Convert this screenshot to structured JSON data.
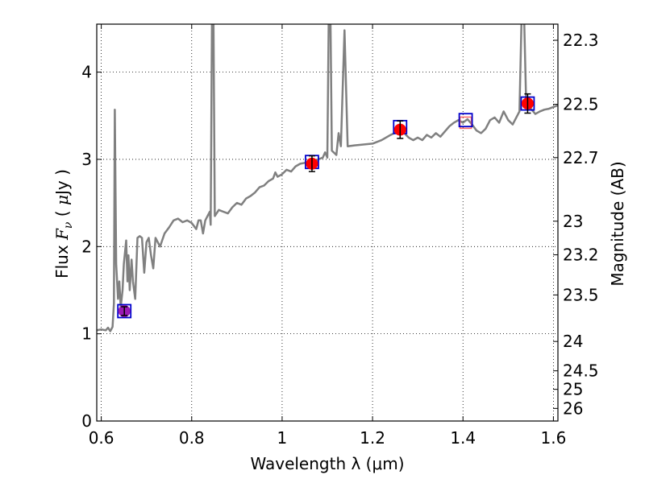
{
  "chart_data": {
    "type": "line",
    "xlabel": "Wavelength  λ (μm)",
    "ylabel": "Flux  F_ν  ( μJy )",
    "y2label": "Magnitude (AB)",
    "xlim": [
      0.59,
      1.61
    ],
    "ylim": [
      0,
      4.55
    ],
    "grid": true,
    "x_ticks": [
      {
        "value": 0.6,
        "label": "0.6"
      },
      {
        "value": 0.8,
        "label": "0.8"
      },
      {
        "value": 1.0,
        "label": "1"
      },
      {
        "value": 1.2,
        "label": "1.2"
      },
      {
        "value": 1.4,
        "label": "1.4"
      },
      {
        "value": 1.6,
        "label": "1.6"
      }
    ],
    "y_ticks": [
      {
        "value": 0,
        "label": "0"
      },
      {
        "value": 1,
        "label": "1"
      },
      {
        "value": 2,
        "label": "2"
      },
      {
        "value": 3,
        "label": "3"
      },
      {
        "value": 4,
        "label": "4"
      }
    ],
    "y2_ticks": [
      {
        "value": 22.3,
        "label": "22.3"
      },
      {
        "value": 22.5,
        "label": "22.5"
      },
      {
        "value": 22.7,
        "label": "22.7"
      },
      {
        "value": 23,
        "label": "23"
      },
      {
        "value": 23.2,
        "label": "23.2"
      },
      {
        "value": 23.5,
        "label": "23.5"
      },
      {
        "value": 24,
        "label": "24"
      },
      {
        "value": 24.5,
        "label": "24.5"
      },
      {
        "value": 25,
        "label": "25"
      },
      {
        "value": 26,
        "label": "26"
      }
    ],
    "model_spectrum": {
      "color": "#808080",
      "points": [
        [
          0.59,
          1.04
        ],
        [
          0.6,
          1.05
        ],
        [
          0.61,
          1.04
        ],
        [
          0.615,
          1.07
        ],
        [
          0.62,
          1.03
        ],
        [
          0.625,
          1.08
        ],
        [
          0.628,
          1.35
        ],
        [
          0.63,
          3.57
        ],
        [
          0.633,
          1.8
        ],
        [
          0.637,
          1.4
        ],
        [
          0.64,
          1.6
        ],
        [
          0.643,
          1.3
        ],
        [
          0.647,
          1.5
        ],
        [
          0.65,
          1.8
        ],
        [
          0.655,
          2.07
        ],
        [
          0.658,
          1.6
        ],
        [
          0.66,
          1.9
        ],
        [
          0.663,
          1.5
        ],
        [
          0.667,
          1.85
        ],
        [
          0.67,
          1.6
        ],
        [
          0.675,
          1.4
        ],
        [
          0.68,
          2.1
        ],
        [
          0.685,
          2.12
        ],
        [
          0.69,
          2.1
        ],
        [
          0.695,
          1.7
        ],
        [
          0.7,
          2.05
        ],
        [
          0.705,
          2.1
        ],
        [
          0.71,
          1.9
        ],
        [
          0.715,
          1.75
        ],
        [
          0.72,
          2.1
        ],
        [
          0.73,
          2.0
        ],
        [
          0.74,
          2.15
        ],
        [
          0.75,
          2.22
        ],
        [
          0.76,
          2.3
        ],
        [
          0.77,
          2.32
        ],
        [
          0.78,
          2.28
        ],
        [
          0.79,
          2.3
        ],
        [
          0.8,
          2.27
        ],
        [
          0.81,
          2.2
        ],
        [
          0.815,
          2.3
        ],
        [
          0.82,
          2.3
        ],
        [
          0.825,
          2.15
        ],
        [
          0.83,
          2.3
        ],
        [
          0.835,
          2.35
        ],
        [
          0.84,
          2.4
        ],
        [
          0.842,
          2.25
        ],
        [
          0.845,
          4.7
        ],
        [
          0.848,
          4.7
        ],
        [
          0.851,
          2.35
        ],
        [
          0.86,
          2.42
        ],
        [
          0.87,
          2.4
        ],
        [
          0.88,
          2.38
        ],
        [
          0.89,
          2.45
        ],
        [
          0.9,
          2.5
        ],
        [
          0.91,
          2.48
        ],
        [
          0.92,
          2.55
        ],
        [
          0.93,
          2.58
        ],
        [
          0.94,
          2.62
        ],
        [
          0.95,
          2.68
        ],
        [
          0.96,
          2.7
        ],
        [
          0.97,
          2.75
        ],
        [
          0.98,
          2.78
        ],
        [
          0.985,
          2.85
        ],
        [
          0.99,
          2.8
        ],
        [
          1.0,
          2.83
        ],
        [
          1.01,
          2.88
        ],
        [
          1.02,
          2.86
        ],
        [
          1.03,
          2.92
        ],
        [
          1.04,
          2.95
        ],
        [
          1.05,
          2.96
        ],
        [
          1.06,
          2.95
        ],
        [
          1.07,
          2.97
        ],
        [
          1.08,
          3.0
        ],
        [
          1.09,
          3.02
        ],
        [
          1.095,
          3.08
        ],
        [
          1.1,
          3.02
        ],
        [
          1.103,
          4.6
        ],
        [
          1.107,
          4.6
        ],
        [
          1.11,
          3.1
        ],
        [
          1.12,
          3.05
        ],
        [
          1.125,
          3.3
        ],
        [
          1.13,
          3.15
        ],
        [
          1.138,
          4.48
        ],
        [
          1.145,
          3.15
        ],
        [
          1.16,
          3.16
        ],
        [
          1.18,
          3.17
        ],
        [
          1.2,
          3.18
        ],
        [
          1.22,
          3.22
        ],
        [
          1.24,
          3.28
        ],
        [
          1.26,
          3.33
        ],
        [
          1.27,
          3.3
        ],
        [
          1.28,
          3.25
        ],
        [
          1.29,
          3.22
        ],
        [
          1.3,
          3.25
        ],
        [
          1.31,
          3.22
        ],
        [
          1.32,
          3.28
        ],
        [
          1.33,
          3.25
        ],
        [
          1.34,
          3.3
        ],
        [
          1.35,
          3.26
        ],
        [
          1.36,
          3.32
        ],
        [
          1.37,
          3.38
        ],
        [
          1.38,
          3.42
        ],
        [
          1.39,
          3.45
        ],
        [
          1.4,
          3.42
        ],
        [
          1.41,
          3.46
        ],
        [
          1.42,
          3.4
        ],
        [
          1.43,
          3.33
        ],
        [
          1.44,
          3.3
        ],
        [
          1.45,
          3.35
        ],
        [
          1.46,
          3.45
        ],
        [
          1.47,
          3.48
        ],
        [
          1.48,
          3.42
        ],
        [
          1.49,
          3.55
        ],
        [
          1.5,
          3.45
        ],
        [
          1.51,
          3.4
        ],
        [
          1.52,
          3.5
        ],
        [
          1.525,
          3.55
        ],
        [
          1.53,
          4.7
        ],
        [
          1.535,
          4.7
        ],
        [
          1.54,
          3.6
        ],
        [
          1.55,
          3.58
        ],
        [
          1.56,
          3.52
        ],
        [
          1.57,
          3.55
        ],
        [
          1.58,
          3.57
        ],
        [
          1.59,
          3.58
        ],
        [
          1.6,
          3.6
        ],
        [
          1.61,
          3.62
        ]
      ]
    },
    "observed_points": [
      {
        "x": 0.651,
        "y": 1.26,
        "yerr": 0.05,
        "color": "#9b1ab5"
      },
      {
        "x": 1.066,
        "y": 2.95,
        "yerr": 0.09,
        "color": "#ff0000"
      },
      {
        "x": 1.261,
        "y": 3.34,
        "yerr": 0.1,
        "color": "#ff0000"
      },
      {
        "x": 1.543,
        "y": 3.64,
        "yerr": 0.11,
        "color": "#ff0000"
      }
    ],
    "model_photometry": [
      {
        "x": 0.651,
        "y": 1.26,
        "color": "#0000cc"
      },
      {
        "x": 1.066,
        "y": 2.97,
        "color": "#0000cc"
      },
      {
        "x": 1.261,
        "y": 3.37,
        "color": "#0000cc"
      },
      {
        "x": 1.406,
        "y": 3.45,
        "color": "#0000cc"
      },
      {
        "x": 1.543,
        "y": 3.64,
        "color": "#0000cc"
      }
    ],
    "upper_limit_points": [
      {
        "x": 1.406,
        "y": 3.42,
        "color": "#ff6666"
      }
    ]
  }
}
